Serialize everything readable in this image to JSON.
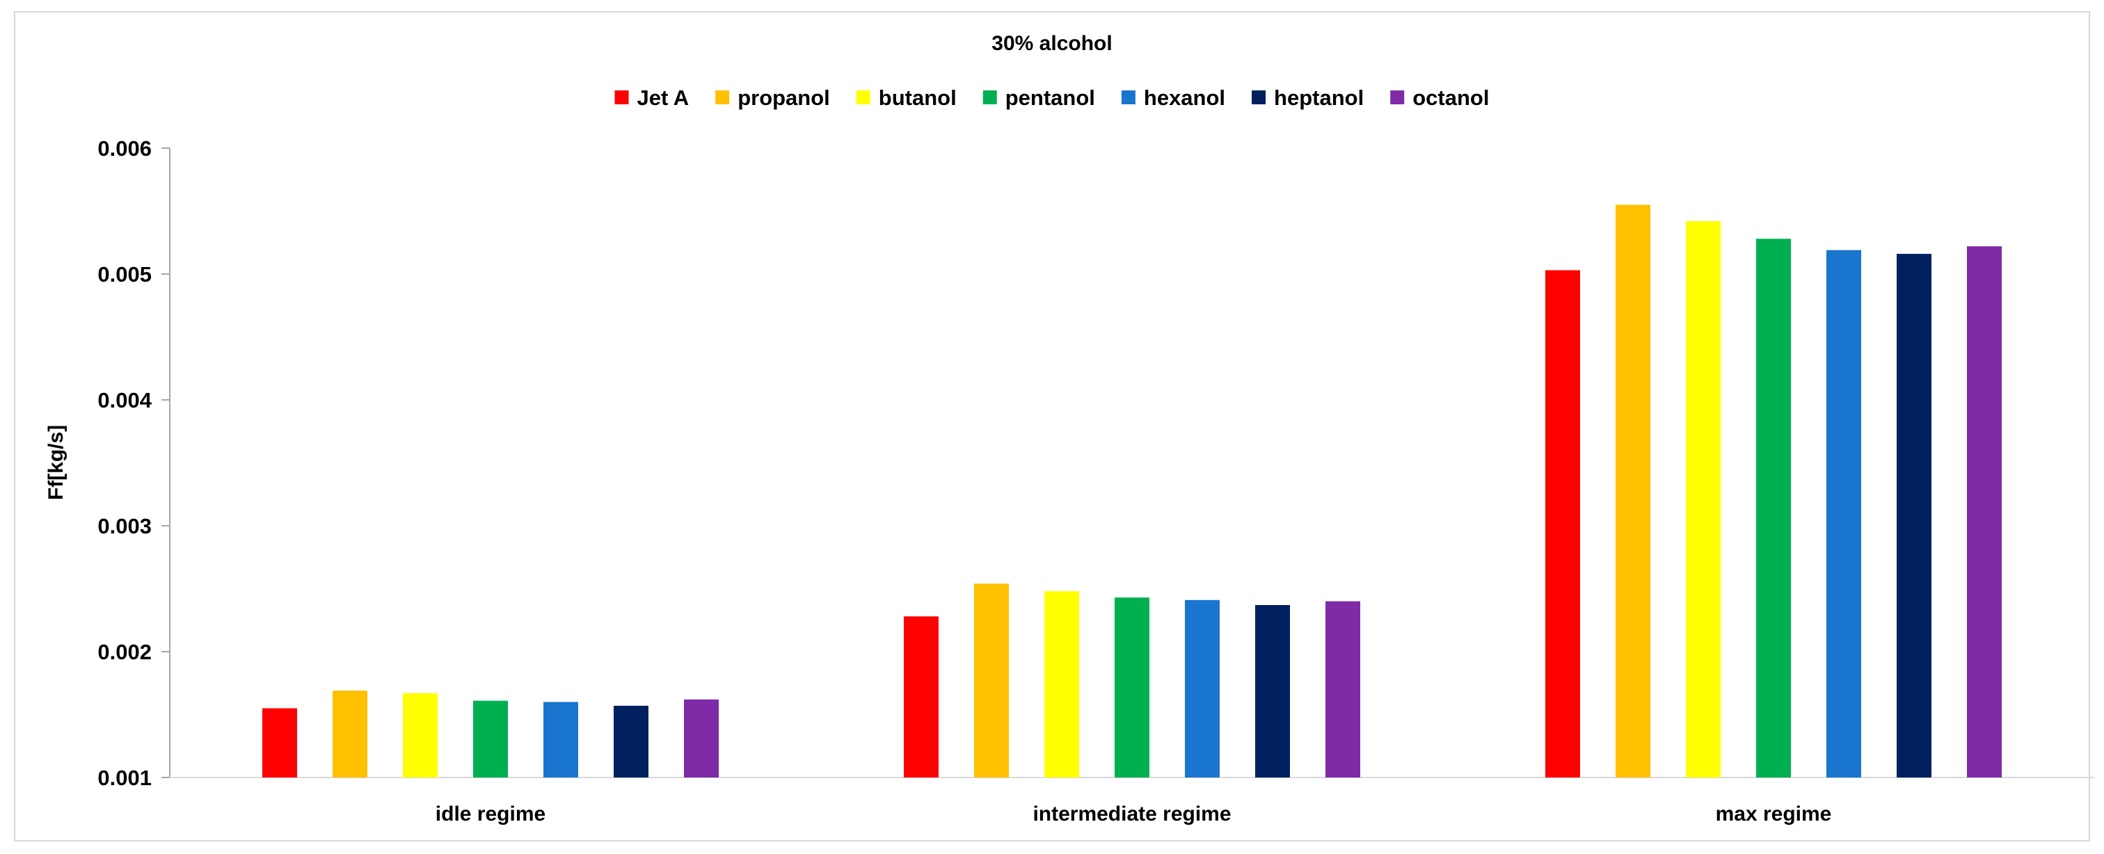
{
  "chart_data": {
    "type": "bar",
    "title": "30% alcohol",
    "xlabel": "",
    "ylabel": "Ff[kg/s]",
    "ylim": [
      0.001,
      0.006
    ],
    "yticks": [
      "0.001",
      "0.002",
      "0.003",
      "0.004",
      "0.005",
      "0.006"
    ],
    "grid": false,
    "legend_position": "top",
    "categories": [
      "idle regime",
      "intermediate regime",
      "max regime"
    ],
    "series": [
      {
        "name": "Jet A",
        "color": "#ff0000",
        "values": [
          0.00155,
          0.00228,
          0.00503
        ]
      },
      {
        "name": "propanol",
        "color": "#ffc000",
        "values": [
          0.00169,
          0.00254,
          0.00555
        ]
      },
      {
        "name": "butanol",
        "color": "#ffff00",
        "values": [
          0.00167,
          0.00248,
          0.00542
        ]
      },
      {
        "name": "pentanol",
        "color": "#00b050",
        "values": [
          0.00161,
          0.00243,
          0.00528
        ]
      },
      {
        "name": "hexanol",
        "color": "#1a75cf",
        "values": [
          0.0016,
          0.00241,
          0.00519
        ]
      },
      {
        "name": "heptanol",
        "color": "#002060",
        "values": [
          0.00157,
          0.00237,
          0.00516
        ]
      },
      {
        "name": "octanol",
        "color": "#7f2aa6",
        "values": [
          0.00162,
          0.0024,
          0.00522
        ]
      }
    ]
  }
}
